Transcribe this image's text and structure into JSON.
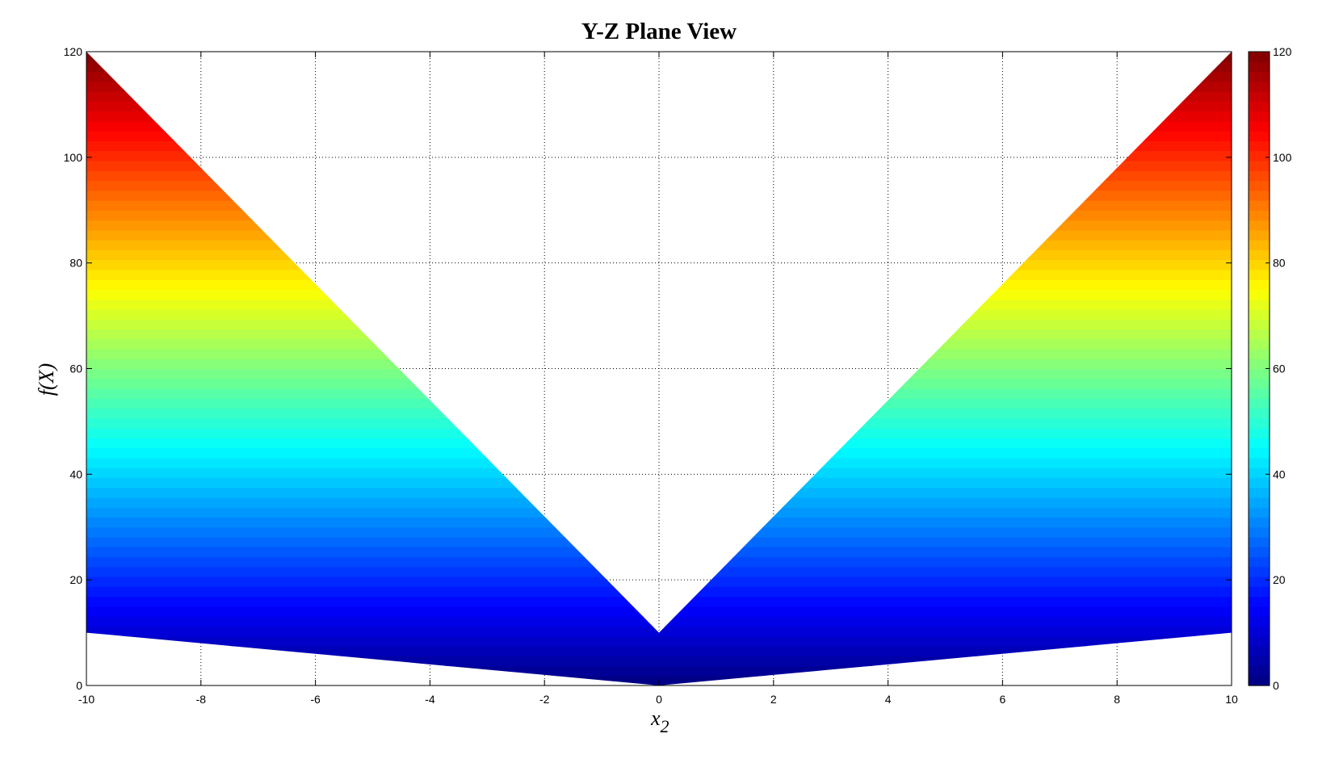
{
  "chart_data": {
    "type": "area",
    "title": "Y-Z Plane View",
    "xlabel": "x",
    "xlabel_subscript": "2",
    "ylabel": "f(X)",
    "xlim": [
      -10,
      10
    ],
    "ylim": [
      0,
      120
    ],
    "xticks": [
      "-10",
      "-8",
      "-6",
      "-4",
      "-2",
      "0",
      "2",
      "4",
      "6",
      "8",
      "10"
    ],
    "yticks": [
      "0",
      "20",
      "40",
      "60",
      "80",
      "100",
      "120"
    ],
    "grid": true,
    "colormap": "jet",
    "colorbar": {
      "range": [
        0,
        120
      ],
      "ticks": [
        "0",
        "20",
        "40",
        "60",
        "80",
        "100",
        "120"
      ],
      "placement": "right"
    },
    "region": {
      "x": [
        -10,
        -8,
        -6,
        -4,
        -2,
        0,
        2,
        4,
        6,
        8,
        10
      ],
      "lower": [
        10,
        8,
        6,
        4,
        2,
        0,
        2,
        4,
        6,
        8,
        10
      ],
      "upper": [
        120,
        98,
        76,
        54,
        32,
        10,
        32,
        54,
        76,
        98,
        120
      ]
    }
  }
}
